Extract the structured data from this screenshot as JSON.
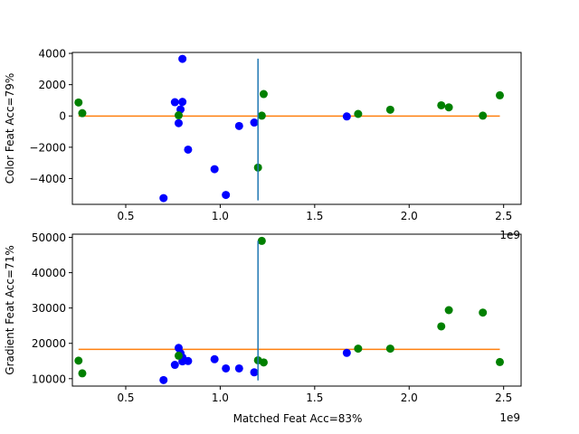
{
  "colors": {
    "group_a": "#0000ff",
    "group_b": "#008000",
    "threshold_line": "#1f77b4",
    "mean_line": "#ff7f0e"
  },
  "chart_data": [
    {
      "type": "scatter",
      "xlabel": "",
      "ylabel": "Color Feat Acc=79%",
      "x_offset_label": "1e9",
      "xlim": [
        217500000.0,
        2592500000.0
      ],
      "ylim": [
        -5650,
        4060
      ],
      "xticks": [
        {
          "v": 500000000.0,
          "label": "0.5"
        },
        {
          "v": 1000000000.0,
          "label": "1.0"
        },
        {
          "v": 1500000000.0,
          "label": "1.5"
        },
        {
          "v": 2000000000.0,
          "label": "2.0"
        },
        {
          "v": 2500000000.0,
          "label": "2.5"
        }
      ],
      "yticks": [
        {
          "v": -4000,
          "label": "−4000"
        },
        {
          "v": -2000,
          "label": "−2000"
        },
        {
          "v": 0,
          "label": "0"
        },
        {
          "v": 2000,
          "label": "2000"
        },
        {
          "v": 4000,
          "label": "4000"
        }
      ],
      "series": [
        {
          "color_key": "group_a",
          "points": [
            [
              700000000.0,
              -5250
            ],
            [
              760000000.0,
              880
            ],
            [
              780000000.0,
              -460
            ],
            [
              790000000.0,
              420
            ],
            [
              800000000.0,
              900
            ],
            [
              800000000.0,
              3650
            ],
            [
              830000000.0,
              -2150
            ],
            [
              970000000.0,
              -3400
            ],
            [
              1030000000.0,
              -5050
            ],
            [
              1100000000.0,
              -640
            ],
            [
              1180000000.0,
              -420
            ],
            [
              1670000000.0,
              -30
            ]
          ]
        },
        {
          "color_key": "group_b",
          "points": [
            [
              250000000.0,
              860
            ],
            [
              270000000.0,
              180
            ],
            [
              780000000.0,
              40
            ],
            [
              1200000000.0,
              -3300
            ],
            [
              1220000000.0,
              20
            ],
            [
              1230000000.0,
              1400
            ],
            [
              1730000000.0,
              130
            ],
            [
              1900000000.0,
              400
            ],
            [
              2170000000.0,
              680
            ],
            [
              2210000000.0,
              550
            ],
            [
              2390000000.0,
              20
            ],
            [
              2480000000.0,
              1320
            ]
          ]
        }
      ],
      "vline": {
        "x": 1200000000.0,
        "y_from": -5400,
        "y_to": 3660
      },
      "hline": {
        "y": -10,
        "x_from": 250000000.0,
        "x_to": 2480000000.0
      }
    },
    {
      "type": "scatter",
      "xlabel": "Matched Feat Acc=83%",
      "ylabel": "Gradient Feat Acc=71%",
      "x_offset_label": "1e9",
      "xlim": [
        217500000.0,
        2592500000.0
      ],
      "ylim": [
        7900,
        50900
      ],
      "xticks": [
        {
          "v": 500000000.0,
          "label": "0.5"
        },
        {
          "v": 1000000000.0,
          "label": "1.0"
        },
        {
          "v": 1500000000.0,
          "label": "1.5"
        },
        {
          "v": 2000000000.0,
          "label": "2.0"
        },
        {
          "v": 2500000000.0,
          "label": "2.5"
        }
      ],
      "yticks": [
        {
          "v": 10000,
          "label": "10000"
        },
        {
          "v": 20000,
          "label": "20000"
        },
        {
          "v": 30000,
          "label": "30000"
        },
        {
          "v": 40000,
          "label": "40000"
        },
        {
          "v": 50000,
          "label": "50000"
        }
      ],
      "series": [
        {
          "color_key": "group_a",
          "points": [
            [
              700000000.0,
              9600
            ],
            [
              760000000.0,
              13900
            ],
            [
              780000000.0,
              18700
            ],
            [
              790000000.0,
              17200
            ],
            [
              800000000.0,
              14900
            ],
            [
              800000000.0,
              16000
            ],
            [
              830000000.0,
              15000
            ],
            [
              970000000.0,
              15500
            ],
            [
              1030000000.0,
              12900
            ],
            [
              1100000000.0,
              12900
            ],
            [
              1180000000.0,
              11800
            ],
            [
              1670000000.0,
              17300
            ]
          ]
        },
        {
          "color_key": "group_b",
          "points": [
            [
              250000000.0,
              15100
            ],
            [
              270000000.0,
              11500
            ],
            [
              780000000.0,
              16500
            ],
            [
              1200000000.0,
              15200
            ],
            [
              1220000000.0,
              49000
            ],
            [
              1230000000.0,
              14600
            ],
            [
              1730000000.0,
              18500
            ],
            [
              1900000000.0,
              18500
            ],
            [
              2170000000.0,
              24800
            ],
            [
              2210000000.0,
              29400
            ],
            [
              2390000000.0,
              28700
            ],
            [
              2480000000.0,
              14700
            ]
          ]
        }
      ],
      "vline": {
        "x": 1200000000.0,
        "y_from": 9500,
        "y_to": 49000
      },
      "hline": {
        "y": 18300,
        "x_from": 250000000.0,
        "x_to": 2480000000.0
      }
    }
  ]
}
